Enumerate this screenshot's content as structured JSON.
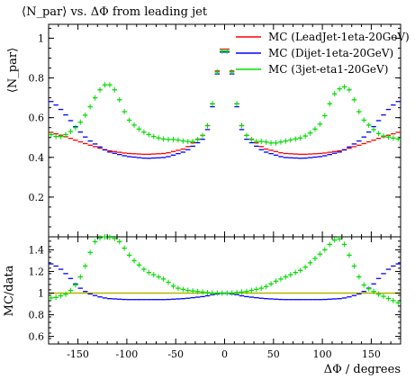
{
  "chart_data": {
    "type": "scatter",
    "title": "⟨N_par⟩ vs. ΔΦ from leading jet",
    "xlabel": "ΔΦ / degrees",
    "xlim": [
      -180,
      180
    ],
    "x_ticks": [
      "-150",
      "-100",
      "-50",
      "0",
      "50",
      "100",
      "150"
    ],
    "x_tick_values": [
      -150,
      -100,
      -50,
      0,
      50,
      100,
      150
    ],
    "legend_position": "top-right",
    "panels": [
      {
        "name": "main",
        "ylabel": "⟨N_par⟩",
        "ylim": [
          0,
          1.07
        ],
        "y_ticks": [
          "0.2",
          "0.4",
          "0.6",
          "0.8",
          "1"
        ],
        "y_tick_values": [
          0.2,
          0.4,
          0.6,
          0.8,
          1.0
        ]
      },
      {
        "name": "ratio",
        "ylabel": "MC/data",
        "ylim": [
          0.53,
          1.52
        ],
        "y_ticks": [
          "0.6",
          "0.8",
          "1",
          "1.2",
          "1.4"
        ],
        "y_tick_values": [
          0.6,
          0.8,
          1.0,
          1.2,
          1.4
        ],
        "reference_line": 1.0
      }
    ],
    "series": [
      {
        "name": "MC (LeadJet-1eta-20GeV)",
        "color": "#ff0000",
        "main_x": [
          -180,
          -160,
          -140,
          -120,
          -100,
          -80,
          -60,
          -40,
          -20,
          -15,
          -10,
          -5,
          0,
          5,
          10,
          15,
          20,
          40,
          60,
          80,
          100,
          120,
          140,
          160,
          180
        ],
        "main_y": [
          0.53,
          0.5,
          0.465,
          0.435,
          0.42,
          0.415,
          0.42,
          0.445,
          0.52,
          0.6,
          0.74,
          0.93,
          0.96,
          0.93,
          0.74,
          0.6,
          0.52,
          0.445,
          0.42,
          0.415,
          0.42,
          0.435,
          0.465,
          0.5,
          0.53
        ]
      },
      {
        "name": "MC (Dijet-1eta-20GeV)",
        "color": "#0000ff",
        "main_x": [
          -180,
          -170,
          -160,
          -150,
          -140,
          -120,
          -100,
          -80,
          -60,
          -40,
          -20,
          -15,
          -10,
          -5,
          0,
          5,
          10,
          15,
          20,
          40,
          60,
          80,
          100,
          120,
          140,
          150,
          160,
          170,
          180
        ],
        "main_y": [
          0.69,
          0.655,
          0.6,
          0.54,
          0.49,
          0.43,
          0.405,
          0.395,
          0.4,
          0.43,
          0.5,
          0.58,
          0.73,
          0.91,
          0.95,
          0.91,
          0.73,
          0.58,
          0.5,
          0.43,
          0.4,
          0.395,
          0.405,
          0.43,
          0.49,
          0.54,
          0.6,
          0.655,
          0.69
        ],
        "ratio_x": [
          -180,
          -170,
          -160,
          -150,
          -140,
          -130,
          -120,
          -100,
          -80,
          -60,
          -40,
          -20,
          -10,
          0,
          10,
          20,
          40,
          60,
          80,
          100,
          120,
          130,
          140,
          150,
          160,
          170,
          180
        ],
        "ratio_y": [
          1.28,
          1.24,
          1.16,
          1.06,
          1.0,
          0.97,
          0.95,
          0.94,
          0.94,
          0.94,
          0.95,
          0.97,
          0.99,
          1.0,
          0.99,
          0.97,
          0.95,
          0.94,
          0.94,
          0.94,
          0.95,
          0.97,
          1.0,
          1.06,
          1.16,
          1.24,
          1.28
        ]
      },
      {
        "name": "MC (3jet-eta1-20GeV)",
        "color": "#00dd00",
        "main_x": [
          -180,
          -170,
          -160,
          -150,
          -140,
          -135,
          -130,
          -125,
          -120,
          -115,
          -110,
          -105,
          -100,
          -90,
          -80,
          -70,
          -60,
          -50,
          -40,
          -30,
          -20,
          -15,
          -10,
          -5,
          0,
          5,
          10,
          15,
          20,
          30,
          40,
          50,
          60,
          70,
          80,
          90,
          100,
          105,
          110,
          115,
          120,
          125,
          130,
          135,
          140,
          150,
          160,
          170,
          180
        ],
        "main_y": [
          0.52,
          0.5,
          0.52,
          0.56,
          0.63,
          0.68,
          0.72,
          0.76,
          0.77,
          0.76,
          0.72,
          0.66,
          0.6,
          0.55,
          0.52,
          0.5,
          0.49,
          0.49,
          0.48,
          0.48,
          0.52,
          0.6,
          0.74,
          0.92,
          0.95,
          0.92,
          0.74,
          0.6,
          0.52,
          0.48,
          0.48,
          0.47,
          0.48,
          0.49,
          0.5,
          0.53,
          0.58,
          0.64,
          0.7,
          0.74,
          0.75,
          0.76,
          0.72,
          0.66,
          0.6,
          0.55,
          0.51,
          0.5,
          0.49
        ],
        "ratio_x": [
          -180,
          -175,
          -170,
          -165,
          -160,
          -155,
          -150,
          -145,
          -140,
          -135,
          -130,
          -125,
          -120,
          -115,
          -110,
          -105,
          -100,
          -95,
          -90,
          -85,
          -80,
          -75,
          -70,
          -65,
          -60,
          -55,
          -50,
          -45,
          -40,
          -35,
          -30,
          -25,
          -20,
          -15,
          -10,
          -5,
          0,
          5,
          10,
          15,
          20,
          25,
          30,
          35,
          40,
          45,
          50,
          55,
          60,
          65,
          70,
          75,
          80,
          85,
          90,
          95,
          100,
          105,
          110,
          115,
          120,
          125,
          130,
          135,
          140,
          145,
          150,
          155,
          160,
          165,
          170,
          175,
          180
        ],
        "ratio_y": [
          0.96,
          0.95,
          0.97,
          0.98,
          1.0,
          1.05,
          1.1,
          1.2,
          1.3,
          1.45,
          1.5,
          1.52,
          1.52,
          1.51,
          1.5,
          1.45,
          1.38,
          1.32,
          1.28,
          1.24,
          1.2,
          1.18,
          1.16,
          1.14,
          1.12,
          1.08,
          1.05,
          1.04,
          1.03,
          1.02,
          1.02,
          1.01,
          1.01,
          1.0,
          1.0,
          1.0,
          1.0,
          1.0,
          1.0,
          1.01,
          1.01,
          1.02,
          1.03,
          1.04,
          1.05,
          1.07,
          1.1,
          1.12,
          1.14,
          1.16,
          1.18,
          1.2,
          1.22,
          1.26,
          1.3,
          1.34,
          1.38,
          1.42,
          1.48,
          1.5,
          1.5,
          1.4,
          1.3,
          1.2,
          1.1,
          1.05,
          1.03,
          1.0,
          0.98,
          0.96,
          0.94,
          0.92,
          0.9
        ]
      }
    ]
  }
}
